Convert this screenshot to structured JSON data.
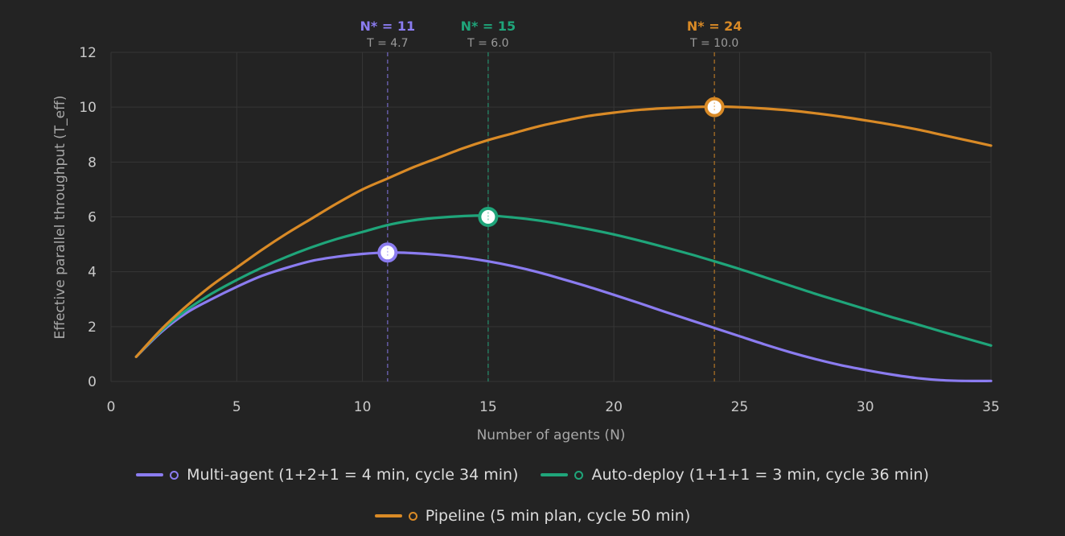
{
  "chart_data": {
    "type": "line",
    "xlabel": "Number of agents (N)",
    "ylabel": "Effective parallel throughput (T_eff)",
    "xlim": [
      0,
      35
    ],
    "ylim": [
      0,
      12
    ],
    "xticks": [
      0,
      5,
      10,
      15,
      20,
      25,
      30,
      35
    ],
    "yticks": [
      0,
      2,
      4,
      6,
      8,
      10,
      12
    ],
    "grid": true,
    "legend_position": "bottom",
    "series": [
      {
        "name": "Multi-agent (1+2+1 = 4 min, cycle 34 min)",
        "color": "#8b7cf0",
        "x": [
          1,
          2,
          3,
          4,
          5,
          6,
          7,
          8,
          9,
          10,
          11,
          12,
          13,
          14,
          15,
          16,
          17,
          18,
          19,
          20,
          21,
          22,
          23,
          24,
          25,
          26,
          27,
          28,
          29,
          30,
          31,
          32,
          33,
          34,
          35
        ],
        "y": [
          0.9,
          1.8,
          2.5,
          3.0,
          3.45,
          3.85,
          4.15,
          4.4,
          4.55,
          4.65,
          4.7,
          4.68,
          4.62,
          4.52,
          4.38,
          4.2,
          3.98,
          3.72,
          3.45,
          3.16,
          2.86,
          2.55,
          2.25,
          1.95,
          1.65,
          1.35,
          1.07,
          0.82,
          0.6,
          0.42,
          0.26,
          0.13,
          0.05,
          0.02,
          0.02
        ],
        "peak": {
          "label": "N* = 11",
          "sublabel": "T = 4.7",
          "x": 11,
          "y": 4.7
        }
      },
      {
        "name": "Auto-deploy (1+1+1 = 3 min, cycle 36 min)",
        "color": "#1fa57a",
        "x": [
          1,
          2,
          3,
          4,
          5,
          6,
          7,
          8,
          9,
          10,
          11,
          12,
          13,
          14,
          15,
          16,
          17,
          18,
          19,
          20,
          21,
          22,
          23,
          24,
          25,
          26,
          27,
          28,
          29,
          30,
          31,
          32,
          33,
          34,
          35
        ],
        "y": [
          0.9,
          1.85,
          2.6,
          3.2,
          3.7,
          4.15,
          4.55,
          4.9,
          5.2,
          5.45,
          5.7,
          5.87,
          5.97,
          6.03,
          6.05,
          5.98,
          5.87,
          5.72,
          5.55,
          5.36,
          5.14,
          4.9,
          4.65,
          4.38,
          4.1,
          3.8,
          3.5,
          3.2,
          2.92,
          2.64,
          2.36,
          2.1,
          1.83,
          1.57,
          1.31
        ],
        "peak": {
          "label": "N* = 15",
          "sublabel": "T = 6.0",
          "x": 15,
          "y": 6.0
        }
      },
      {
        "name": "Pipeline (5 min plan, cycle 50 min)",
        "color": "#d98a26",
        "x": [
          1,
          2,
          3,
          4,
          5,
          6,
          7,
          8,
          9,
          10,
          11,
          12,
          13,
          14,
          15,
          16,
          17,
          18,
          19,
          20,
          21,
          22,
          23,
          24,
          25,
          26,
          27,
          28,
          29,
          30,
          31,
          32,
          33,
          34,
          35
        ],
        "y": [
          0.9,
          1.9,
          2.75,
          3.5,
          4.15,
          4.8,
          5.4,
          5.95,
          6.5,
          7.0,
          7.4,
          7.8,
          8.15,
          8.5,
          8.8,
          9.05,
          9.3,
          9.5,
          9.68,
          9.8,
          9.9,
          9.96,
          10.0,
          10.02,
          10.0,
          9.95,
          9.88,
          9.78,
          9.66,
          9.52,
          9.37,
          9.2,
          9.0,
          8.8,
          8.6
        ],
        "peak": {
          "label": "N* = 24",
          "sublabel": "T = 10.0",
          "x": 24,
          "y": 10.0
        }
      }
    ]
  }
}
